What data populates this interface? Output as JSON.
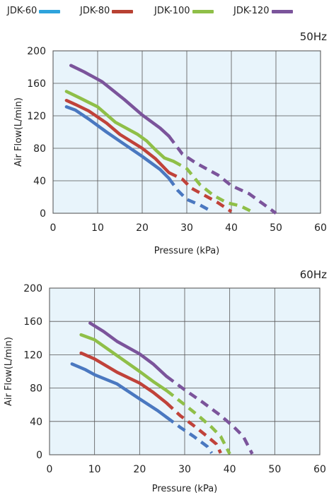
{
  "legend": [
    {
      "name": "JDK-60",
      "color": "#2ea3dc"
    },
    {
      "name": "JDK-80",
      "color": "#b84132"
    },
    {
      "name": "JDK-100",
      "color": "#8fbf48"
    },
    {
      "name": "JDK-120",
      "color": "#7b549b"
    }
  ],
  "chart_data": [
    {
      "type": "line",
      "title": "50Hz",
      "xlabel": "Pressure (kPa)",
      "ylabel": "Air Flow(L/min)",
      "xlim": [
        0,
        60
      ],
      "ylim": [
        0,
        200
      ],
      "xticks": [
        0,
        10,
        20,
        30,
        40,
        50,
        60
      ],
      "yticks": [
        0,
        40,
        80,
        120,
        160,
        200
      ],
      "grid": true,
      "plot_background": "#e8f4fb",
      "note": "",
      "series": [
        {
          "name": "JDK-60",
          "color": "#4a78c0",
          "solid": [
            [
              3,
              131
            ],
            [
              5,
              127
            ],
            [
              8,
              116
            ],
            [
              12,
              100
            ],
            [
              16,
              85
            ],
            [
              20,
              70
            ],
            [
              24,
              54
            ],
            [
              26,
              43
            ]
          ],
          "dashed": [
            [
              26,
              43
            ],
            [
              28,
              28
            ],
            [
              30,
              17
            ],
            [
              33,
              10
            ],
            [
              35,
              4
            ]
          ]
        },
        {
          "name": "JDK-80",
          "color": "#c0423a",
          "solid": [
            [
              3,
              139
            ],
            [
              5,
              134
            ],
            [
              8,
              126
            ],
            [
              12,
              111
            ],
            [
              15,
              97
            ],
            [
              20,
              80
            ],
            [
              23,
              67
            ],
            [
              26,
              50
            ]
          ],
          "dashed": [
            [
              26,
              50
            ],
            [
              29,
              42
            ],
            [
              31,
              31
            ],
            [
              34,
              22
            ],
            [
              37,
              13
            ],
            [
              40,
              2
            ]
          ]
        },
        {
          "name": "JDK-100",
          "color": "#8fbf48",
          "solid": [
            [
              3,
              150
            ],
            [
              6,
              142
            ],
            [
              10,
              131
            ],
            [
              14,
              112
            ],
            [
              19,
              97
            ],
            [
              21,
              89
            ],
            [
              23,
              78
            ],
            [
              25,
              68
            ],
            [
              27,
              64
            ]
          ],
          "dashed": [
            [
              27,
              64
            ],
            [
              30,
              55
            ],
            [
              33,
              35
            ],
            [
              36,
              22
            ],
            [
              39,
              13
            ],
            [
              42,
              9
            ],
            [
              45,
              1
            ]
          ]
        },
        {
          "name": "JDK-120",
          "color": "#7b549b",
          "solid": [
            [
              4,
              182
            ],
            [
              7,
              174
            ],
            [
              11,
              162
            ],
            [
              16,
              140
            ],
            [
              20,
              121
            ],
            [
              22,
              113
            ],
            [
              24,
              105
            ],
            [
              26,
              95
            ]
          ],
          "dashed": [
            [
              26,
              95
            ],
            [
              29,
              73
            ],
            [
              32,
              62
            ],
            [
              34,
              56
            ],
            [
              37,
              47
            ],
            [
              40,
              34
            ],
            [
              44,
              24
            ],
            [
              47,
              12
            ],
            [
              50,
              0
            ]
          ]
        }
      ]
    },
    {
      "type": "line",
      "title": "60Hz",
      "xlabel": "Pressure (kPa)",
      "ylabel": "Air Flow(L/min)",
      "xlim": [
        0,
        60
      ],
      "ylim": [
        0,
        200
      ],
      "xticks": [
        0,
        10,
        20,
        30,
        40,
        50,
        60
      ],
      "yticks": [
        0,
        40,
        80,
        120,
        160,
        200
      ],
      "grid": true,
      "plot_background": "#e8f4fb",
      "series": [
        {
          "name": "JDK-60",
          "color": "#4a78c0",
          "solid": [
            [
              5,
              109
            ],
            [
              8,
              102
            ],
            [
              10,
              96
            ],
            [
              15,
              85
            ],
            [
              20,
              67
            ],
            [
              24,
              53
            ],
            [
              26,
              45
            ]
          ],
          "dashed": [
            [
              26,
              45
            ],
            [
              29,
              33
            ],
            [
              32,
              22
            ],
            [
              35,
              10
            ],
            [
              36,
              2
            ]
          ]
        },
        {
          "name": "JDK-80",
          "color": "#c0423a",
          "solid": [
            [
              7,
              122
            ],
            [
              10,
              115
            ],
            [
              15,
              99
            ],
            [
              20,
              86
            ],
            [
              23,
              75
            ],
            [
              26,
              62
            ]
          ],
          "dashed": [
            [
              26,
              62
            ],
            [
              29,
              47
            ],
            [
              32,
              35
            ],
            [
              35,
              22
            ],
            [
              37,
              13
            ],
            [
              38,
              2
            ]
          ]
        },
        {
          "name": "JDK-100",
          "color": "#8fbf48",
          "solid": [
            [
              7,
              144
            ],
            [
              10,
              138
            ],
            [
              15,
              119
            ],
            [
              20,
              100
            ],
            [
              23,
              88
            ],
            [
              26,
              77
            ]
          ],
          "dashed": [
            [
              26,
              77
            ],
            [
              30,
              60
            ],
            [
              33,
              47
            ],
            [
              36,
              33
            ],
            [
              38,
              22
            ],
            [
              40,
              1
            ]
          ]
        },
        {
          "name": "JDK-120",
          "color": "#7b549b",
          "solid": [
            [
              9,
              158
            ],
            [
              12,
              148
            ],
            [
              15,
              136
            ],
            [
              20,
              121
            ],
            [
              23,
              109
            ],
            [
              26,
              94
            ]
          ],
          "dashed": [
            [
              26,
              94
            ],
            [
              30,
              78
            ],
            [
              34,
              63
            ],
            [
              38,
              47
            ],
            [
              41,
              33
            ],
            [
              43,
              22
            ],
            [
              45,
              1
            ]
          ]
        }
      ]
    }
  ]
}
